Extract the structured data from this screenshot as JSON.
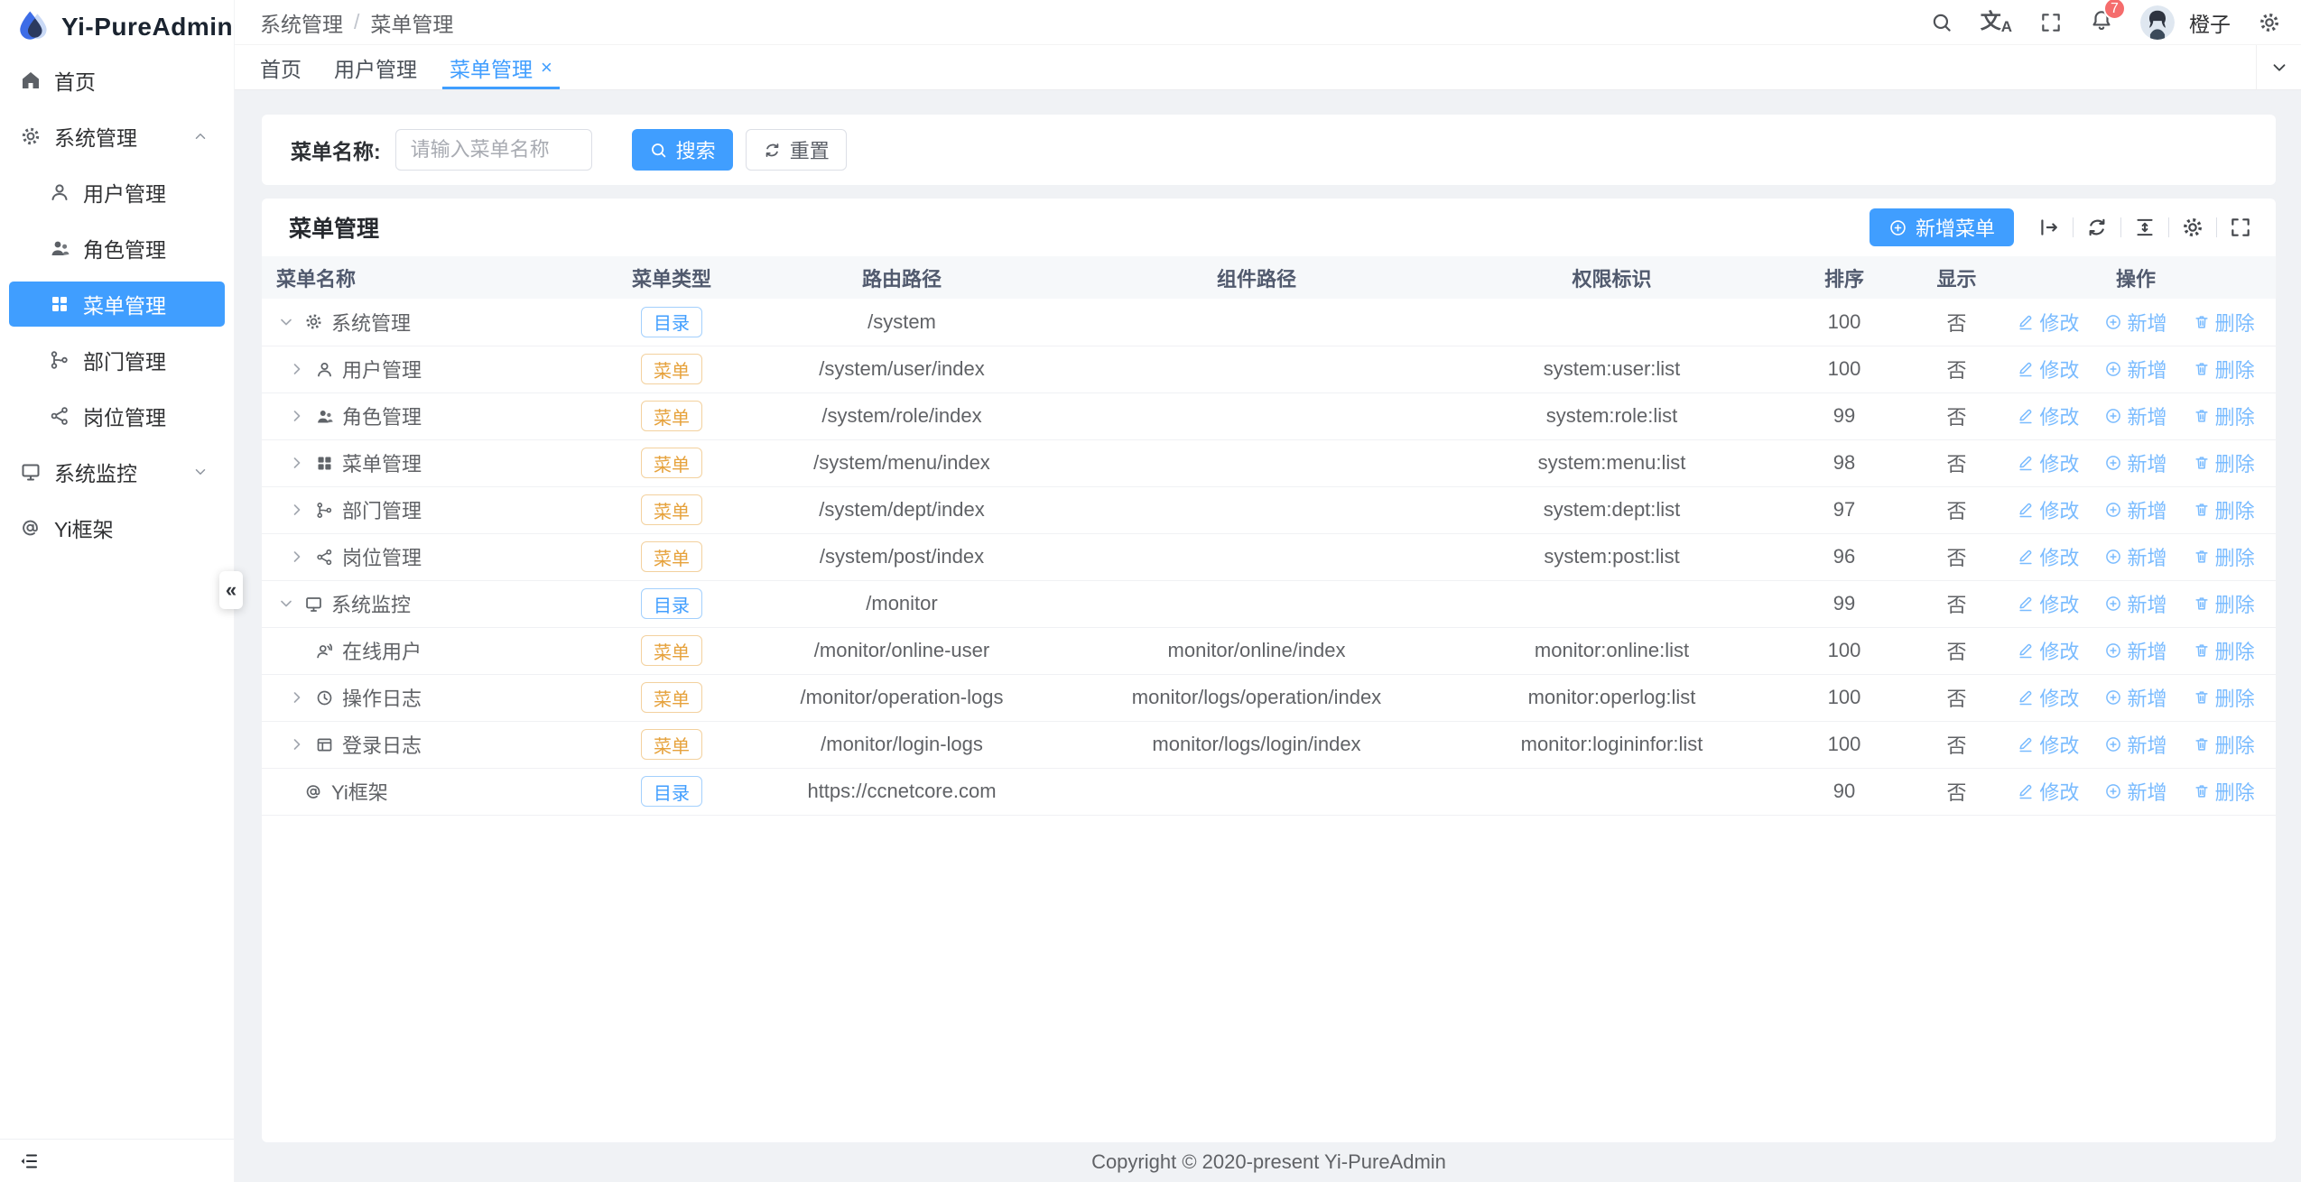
{
  "app": {
    "logo_title": "Yi-PureAdmin",
    "footer_text": "Copyright © 2020-present Yi-PureAdmin"
  },
  "colors": {
    "primary": "#409eff",
    "tag_dir_text": "#409eff",
    "tag_menu_text": "#e6a23c",
    "badge_red": "#f56c6c",
    "action_link": "#79bbff",
    "content_bg": "#f0f2f5"
  },
  "sidebar": {
    "items": [
      {
        "label": "首页",
        "icon": "home-icon"
      },
      {
        "label": "系统管理",
        "icon": "gear-icon",
        "state": "expanded"
      },
      {
        "label": "用户管理",
        "icon": "user-icon"
      },
      {
        "label": "角色管理",
        "icon": "role-icon"
      },
      {
        "label": "菜单管理",
        "icon": "menu-grid-icon",
        "active": true
      },
      {
        "label": "部门管理",
        "icon": "dept-icon"
      },
      {
        "label": "岗位管理",
        "icon": "post-icon"
      },
      {
        "label": "系统监控",
        "icon": "monitor-icon",
        "state": "collapsed"
      },
      {
        "label": "Yi框架",
        "icon": "at-icon"
      }
    ],
    "collapse_glyph": "«"
  },
  "header": {
    "breadcrumb": {
      "first": "系统管理",
      "separator": "/",
      "last": "菜单管理"
    },
    "icons": [
      "search-icon",
      "translate-icon",
      "fullscreen-icon",
      "bell-icon",
      "settings-icon"
    ],
    "translate_glyph_main": "文",
    "translate_glyph_sub": "A",
    "bell_count": "7",
    "user_name": "橙子"
  },
  "tabs": {
    "items": [
      {
        "label": "首页"
      },
      {
        "label": "用户管理"
      },
      {
        "label": "菜单管理",
        "active": true,
        "close_glyph": "×"
      }
    ]
  },
  "search": {
    "label": "菜单名称:",
    "placeholder": "请输入菜单名称",
    "search_label": "搜索",
    "reset_label": "重置"
  },
  "card": {
    "title": "菜单管理",
    "add_label": "新增菜单",
    "toolbar_icons": [
      "expand-row-icon",
      "refresh-icon",
      "density-icon",
      "settings-icon",
      "fullscreen-icon"
    ]
  },
  "table": {
    "columns": [
      "菜单名称",
      "菜单类型",
      "路由路径",
      "组件路径",
      "权限标识",
      "排序",
      "显示",
      "操作"
    ],
    "tag_labels": {
      "dir": "目录",
      "menu": "菜单"
    },
    "actions": {
      "edit": "修改",
      "add": "新增",
      "delete": "删除"
    },
    "rows": [
      {
        "name": "系统管理",
        "icon": "gear",
        "arrow": "down",
        "level": 0,
        "type": "dir",
        "route": "/system",
        "component": "",
        "perms": "",
        "sort": "100",
        "visible": "否"
      },
      {
        "name": "用户管理",
        "icon": "user",
        "arrow": "right",
        "level": 1,
        "type": "menu",
        "route": "/system/user/index",
        "component": "",
        "perms": "system:user:list",
        "sort": "100",
        "visible": "否"
      },
      {
        "name": "角色管理",
        "icon": "role",
        "arrow": "right",
        "level": 1,
        "type": "menu",
        "route": "/system/role/index",
        "component": "",
        "perms": "system:role:list",
        "sort": "99",
        "visible": "否"
      },
      {
        "name": "菜单管理",
        "icon": "grid",
        "arrow": "right",
        "level": 1,
        "type": "menu",
        "route": "/system/menu/index",
        "component": "",
        "perms": "system:menu:list",
        "sort": "98",
        "visible": "否"
      },
      {
        "name": "部门管理",
        "icon": "dept",
        "arrow": "right",
        "level": 1,
        "type": "menu",
        "route": "/system/dept/index",
        "component": "",
        "perms": "system:dept:list",
        "sort": "97",
        "visible": "否"
      },
      {
        "name": "岗位管理",
        "icon": "post",
        "arrow": "right",
        "level": 1,
        "type": "menu",
        "route": "/system/post/index",
        "component": "",
        "perms": "system:post:list",
        "sort": "96",
        "visible": "否"
      },
      {
        "name": "系统监控",
        "icon": "monitor",
        "arrow": "down",
        "level": 0,
        "type": "dir",
        "route": "/monitor",
        "component": "",
        "perms": "",
        "sort": "99",
        "visible": "否"
      },
      {
        "name": "在线用户",
        "icon": "online",
        "arrow": "none",
        "level": 1,
        "type": "menu",
        "route": "/monitor/online-user",
        "component": "monitor/online/index",
        "perms": "monitor:online:list",
        "sort": "100",
        "visible": "否"
      },
      {
        "name": "操作日志",
        "icon": "clock",
        "arrow": "right",
        "level": 1,
        "type": "menu",
        "route": "/monitor/operation-logs",
        "component": "monitor/logs/operation/index",
        "perms": "monitor:operlog:list",
        "sort": "100",
        "visible": "否"
      },
      {
        "name": "登录日志",
        "icon": "loginlog",
        "arrow": "right",
        "level": 1,
        "type": "menu",
        "route": "/monitor/login-logs",
        "component": "monitor/logs/login/index",
        "perms": "monitor:logininfor:list",
        "sort": "100",
        "visible": "否"
      },
      {
        "name": "Yi框架",
        "icon": "at",
        "arrow": "none",
        "level": 0,
        "type": "dir",
        "route": "https://ccnetcore.com",
        "component": "",
        "perms": "",
        "sort": "90",
        "visible": "否"
      }
    ]
  }
}
